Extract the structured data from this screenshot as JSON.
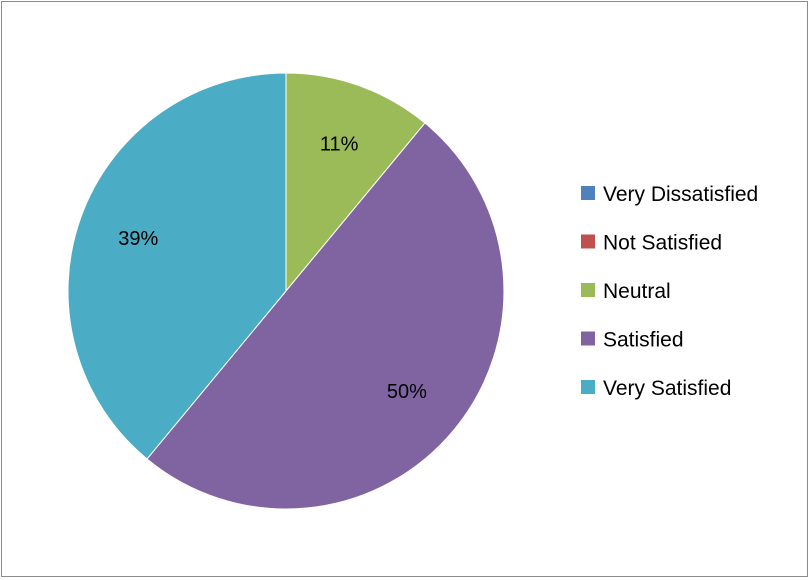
{
  "chart_data": {
    "type": "pie",
    "title": "",
    "legend_position": "right",
    "slices": [
      {
        "label": "Very Dissatisfied",
        "value": 0,
        "display": "",
        "color": "#4f81bd"
      },
      {
        "label": "Not Satisfied",
        "value": 0,
        "display": "",
        "color": "#c0504d"
      },
      {
        "label": "Neutral",
        "value": 11,
        "display": "11%",
        "color": "#9bbb59"
      },
      {
        "label": "Satisfied",
        "value": 50,
        "display": "50%",
        "color": "#8064a2"
      },
      {
        "label": "Very Satisfied",
        "value": 39,
        "display": "39%",
        "color": "#4bacc6"
      }
    ]
  }
}
